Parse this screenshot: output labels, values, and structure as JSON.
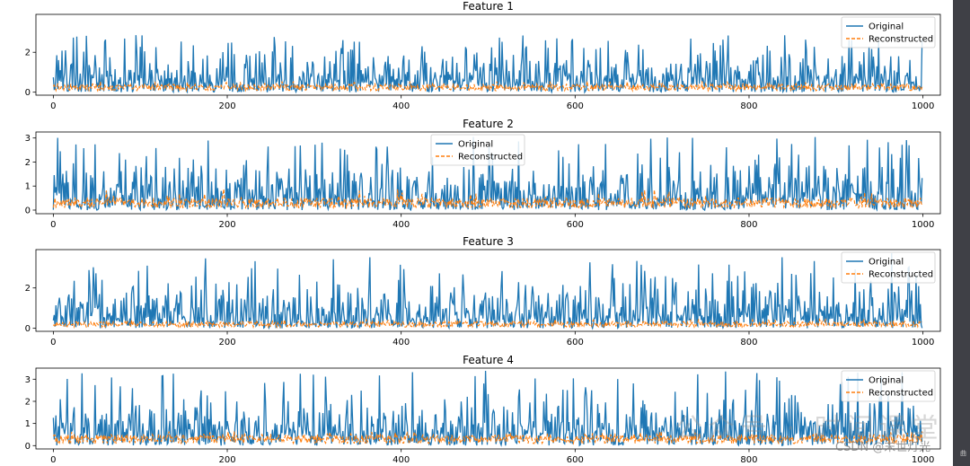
{
  "chart_data": [
    {
      "type": "line",
      "title": "Feature 1",
      "x_range": [
        0,
        999
      ],
      "xlim": [
        -20,
        1020
      ],
      "ylim": [
        -0.15,
        3.9
      ],
      "x_ticks": [
        0,
        200,
        400,
        600,
        800,
        1000
      ],
      "y_ticks": [
        0,
        2
      ],
      "legend_position": "top-right",
      "series": [
        {
          "name": "Original",
          "color": "#1f77b4",
          "style": "solid",
          "mean": 0.75,
          "max": 2.9
        },
        {
          "name": "Reconstructed",
          "color": "#ff7f0e",
          "style": "dashed",
          "mean": 0.25,
          "max": 0.55
        }
      ]
    },
    {
      "type": "line",
      "title": "Feature 2",
      "x_range": [
        0,
        999
      ],
      "xlim": [
        -20,
        1020
      ],
      "ylim": [
        -0.15,
        3.25
      ],
      "x_ticks": [
        0,
        200,
        400,
        600,
        800,
        1000
      ],
      "y_ticks": [
        0,
        1,
        2,
        3
      ],
      "legend_position": "top-center",
      "series": [
        {
          "name": "Original",
          "color": "#1f77b4",
          "style": "solid",
          "mean": 0.7,
          "max": 3.05
        },
        {
          "name": "Reconstructed",
          "color": "#ff7f0e",
          "style": "dashed",
          "mean": 0.3,
          "max": 0.9
        }
      ]
    },
    {
      "type": "line",
      "title": "Feature 3",
      "x_range": [
        0,
        999
      ],
      "xlim": [
        -20,
        1020
      ],
      "ylim": [
        -0.15,
        3.9
      ],
      "x_ticks": [
        0,
        200,
        400,
        600,
        800,
        1000
      ],
      "y_ticks": [
        0,
        2
      ],
      "legend_position": "top-right",
      "series": [
        {
          "name": "Original",
          "color": "#1f77b4",
          "style": "solid",
          "mean": 0.75,
          "max": 3.8
        },
        {
          "name": "Reconstructed",
          "color": "#ff7f0e",
          "style": "dashed",
          "mean": 0.2,
          "max": 0.45
        }
      ]
    },
    {
      "type": "line",
      "title": "Feature 4",
      "x_range": [
        0,
        999
      ],
      "xlim": [
        -20,
        1020
      ],
      "ylim": [
        -0.15,
        3.5
      ],
      "x_ticks": [
        0,
        200,
        400,
        600,
        800,
        1000
      ],
      "y_ticks": [
        0,
        1,
        2,
        3
      ],
      "legend_position": "top-right",
      "series": [
        {
          "name": "Original",
          "color": "#1f77b4",
          "style": "solid",
          "mean": 0.8,
          "max": 3.4
        },
        {
          "name": "Reconstructed",
          "color": "#ff7f0e",
          "style": "dashed",
          "mean": 0.3,
          "max": 0.65
        }
      ]
    }
  ],
  "watermark": "公众号 · 时间课堂",
  "credit": "CSDN @末世灯光",
  "sidebar_mark": "曲"
}
